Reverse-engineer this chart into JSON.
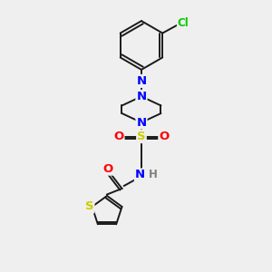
{
  "background_color": "#efefef",
  "bond_color": "#1a1a1a",
  "atom_colors": {
    "N": "#0000ff",
    "O": "#ff0000",
    "S_sulfonyl": "#cccc00",
    "S_thiophene": "#cccc00",
    "Cl": "#00cc00",
    "H": "#808080",
    "C": "#1a1a1a"
  },
  "figsize": [
    3.0,
    3.0
  ],
  "dpi": 100
}
